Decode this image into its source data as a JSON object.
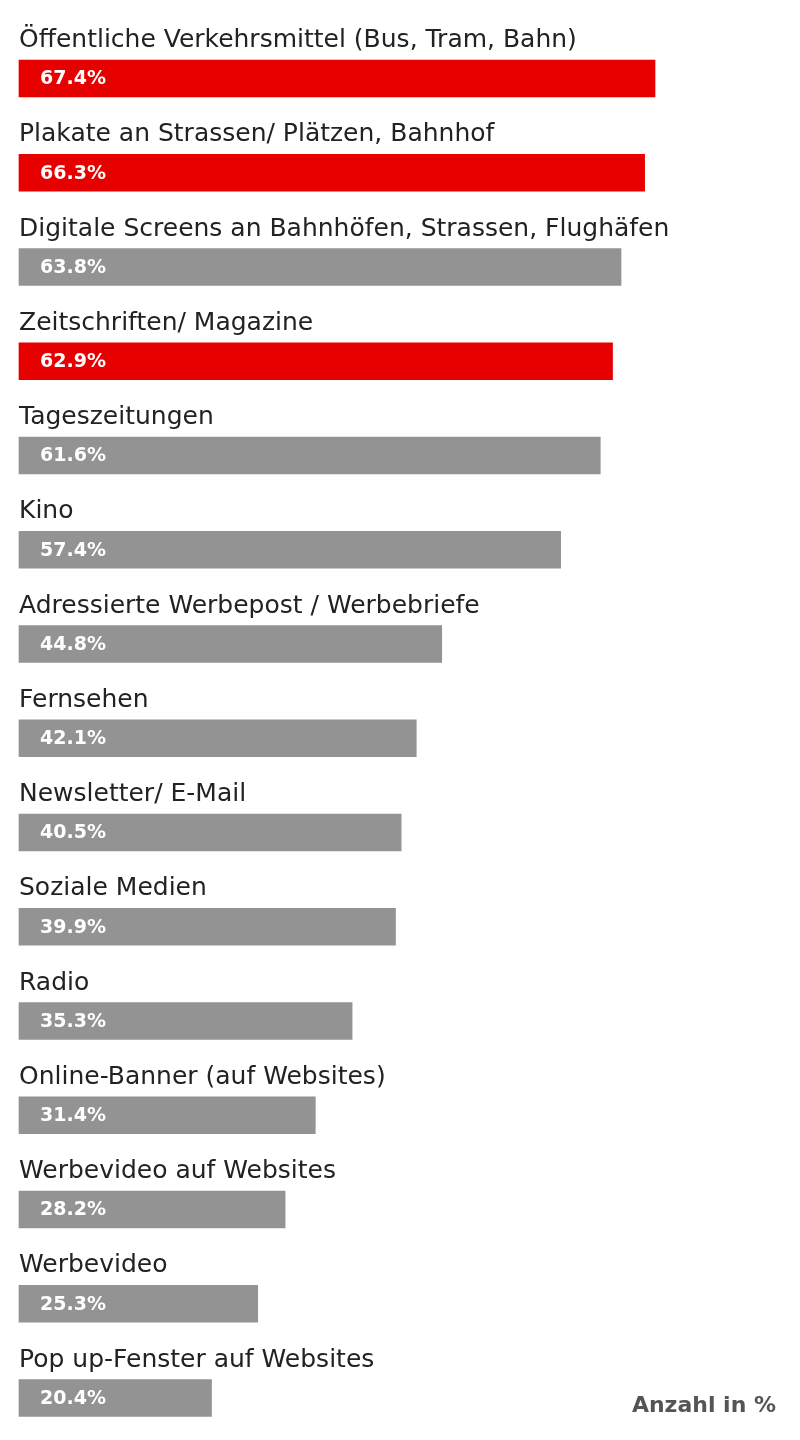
{
  "chart_data": {
    "type": "bar",
    "orientation": "horizontal",
    "categories": [
      "Öffentliche Verkehrsmittel (Bus, Tram, Bahn)",
      "Plakate an Strassen/ Plätzen, Bahnhof",
      "Digitale Screens an Bahnhöfen, Strassen, Flughäfen",
      "Zeitschriften/ Magazine",
      "Tageszeitungen",
      "Kino",
      "Adressierte Werbepost / Werbebriefe",
      "Fernsehen",
      "Newsletter/ E-Mail",
      "Soziale Medien",
      "Radio",
      "Online-Banner (auf Websites)",
      "Werbevideo auf Websites",
      "Werbevideo",
      "Pop up-Fenster auf Websites"
    ],
    "values": [
      67.4,
      66.3,
      63.8,
      62.9,
      61.6,
      57.4,
      44.8,
      42.1,
      40.5,
      39.9,
      35.3,
      31.4,
      28.2,
      25.3,
      20.4
    ],
    "colors": [
      "#e60000",
      "#e60000",
      "#939393",
      "#e60000",
      "#939393",
      "#939393",
      "#939393",
      "#939393",
      "#939393",
      "#939393",
      "#939393",
      "#939393",
      "#939393",
      "#939393",
      "#939393"
    ],
    "value_labels": [
      "67.4%",
      "66.3%",
      "63.8%",
      "62.9%",
      "61.6%",
      "57.4%",
      "44.8%",
      "42.1%",
      "40.5%",
      "39.9%",
      "35.3%",
      "31.4%",
      "28.2%",
      "25.3%",
      "20.4%"
    ],
    "xlabel": "Anzahl in %"
  }
}
